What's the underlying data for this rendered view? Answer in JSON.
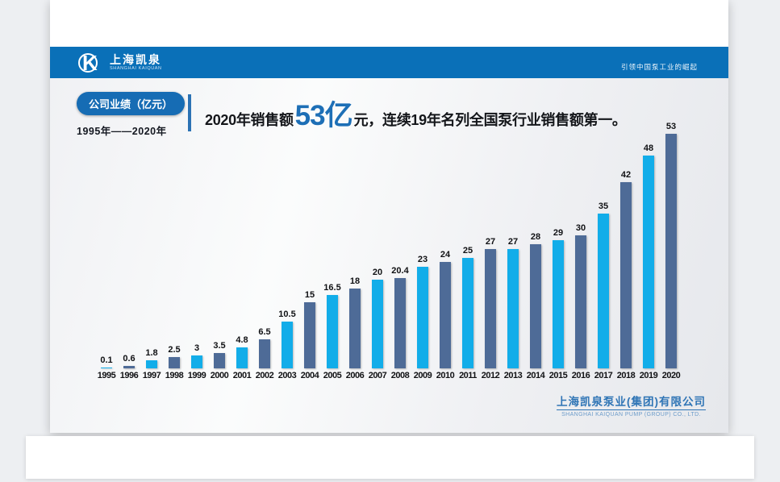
{
  "header": {
    "logo": {
      "name_cn": "上海凯泉",
      "name_en": "SHANGHAI KAIQUAN"
    },
    "slogan": "引领中国泵工业的崛起"
  },
  "badge": {
    "label": "公司业绩（亿元）",
    "range": "1995年——2020年"
  },
  "title": {
    "prefix": "2020年销售额 ",
    "highlight": "53亿",
    "suffix": "元，连续19年名列全国泵行业销售额第一。"
  },
  "footer": {
    "company_cn": "上海凯泉泵业(集团)有限公司",
    "company_en": "SHANGHAI KAIQUAN PUMP (GROUP) CO., LTD."
  },
  "colors": {
    "header_blue": "#0a70b8",
    "badge_blue": "#166cb4",
    "highlight_blue": "#1d6fb6",
    "bar_dark": "#4e6b97",
    "bar_light": "#12ade9"
  },
  "chart_data": {
    "type": "bar",
    "title": "公司业绩（亿元）1995年——2020年",
    "categories": [
      "1995",
      "1996",
      "1997",
      "1998",
      "1999",
      "2000",
      "2001",
      "2002",
      "2003",
      "2004",
      "2005",
      "2006",
      "2007",
      "2008",
      "2009",
      "2010",
      "2011",
      "2012",
      "2013",
      "2014",
      "2015",
      "2016",
      "2017",
      "2018",
      "2019",
      "2020"
    ],
    "values": [
      0.1,
      0.6,
      1.8,
      2.5,
      3,
      3.5,
      4.8,
      6.5,
      10.5,
      15,
      16.5,
      18,
      20,
      20.4,
      23,
      24,
      25,
      27,
      27,
      28,
      29,
      30,
      35,
      42,
      48,
      53
    ],
    "xlabel": "",
    "ylabel": "亿元",
    "ylim": [
      0,
      55
    ],
    "grid": false,
    "legend": "none",
    "color_rule": "even years dark steel blue, odd years light cyan blue"
  }
}
